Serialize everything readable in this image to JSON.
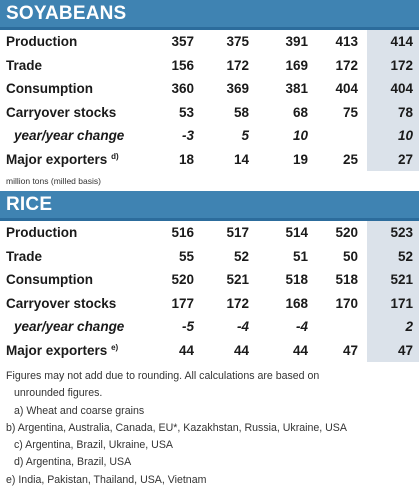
{
  "soy": {
    "title": "SOYABEANS",
    "rows": [
      {
        "label": "Production",
        "sup": "",
        "italic": false,
        "values": [
          "357",
          "375",
          "391",
          "413",
          "414"
        ]
      },
      {
        "label": "Trade",
        "sup": "",
        "italic": false,
        "values": [
          "156",
          "172",
          "169",
          "172",
          "172"
        ]
      },
      {
        "label": "Consumption",
        "sup": "",
        "italic": false,
        "values": [
          "360",
          "369",
          "381",
          "404",
          "404"
        ]
      },
      {
        "label": "Carryover stocks",
        "sup": "",
        "italic": false,
        "values": [
          "53",
          "58",
          "68",
          "75",
          "78"
        ]
      },
      {
        "label": "year/year change",
        "sup": "",
        "italic": true,
        "values": [
          "-3",
          "5",
          "10",
          "",
          "10"
        ]
      },
      {
        "label": "Major exporters",
        "sup": "d)",
        "italic": false,
        "values": [
          "18",
          "14",
          "19",
          "25",
          "27"
        ]
      }
    ],
    "units": "million tons (milled basis)"
  },
  "rice": {
    "title": "RICE",
    "rows": [
      {
        "label": "Production",
        "sup": "",
        "italic": false,
        "values": [
          "516",
          "517",
          "514",
          "520",
          "523"
        ]
      },
      {
        "label": "Trade",
        "sup": "",
        "italic": false,
        "values": [
          "55",
          "52",
          "51",
          "50",
          "52"
        ]
      },
      {
        "label": "Consumption",
        "sup": "",
        "italic": false,
        "values": [
          "520",
          "521",
          "518",
          "518",
          "521"
        ]
      },
      {
        "label": "Carryover stocks",
        "sup": "",
        "italic": false,
        "values": [
          "177",
          "172",
          "168",
          "170",
          "171"
        ]
      },
      {
        "label": "year/year change",
        "sup": "",
        "italic": true,
        "values": [
          "-5",
          "-4",
          "-4",
          "",
          "2"
        ]
      },
      {
        "label": "Major exporters",
        "sup": "e)",
        "italic": false,
        "values": [
          "44",
          "44",
          "44",
          "47",
          "47"
        ]
      }
    ]
  },
  "footnotes": {
    "line1": "Figures may not add due to rounding. All calculations are based on",
    "line2": "unrounded figures.",
    "a": "a) Wheat and coarse grains",
    "b": "b) Argentina, Australia, Canada, EU*, Kazakhstan, Russia, Ukraine, USA",
    "c": "c) Argentina, Brazil, Ukraine, USA",
    "d": "d) Argentina, Brazil, USA",
    "e": "e) India, Pakistan, Thailand, USA, Vietnam"
  },
  "colors": {
    "header_bg": "#3f83b2",
    "shade_col": "#dbe2ea"
  }
}
